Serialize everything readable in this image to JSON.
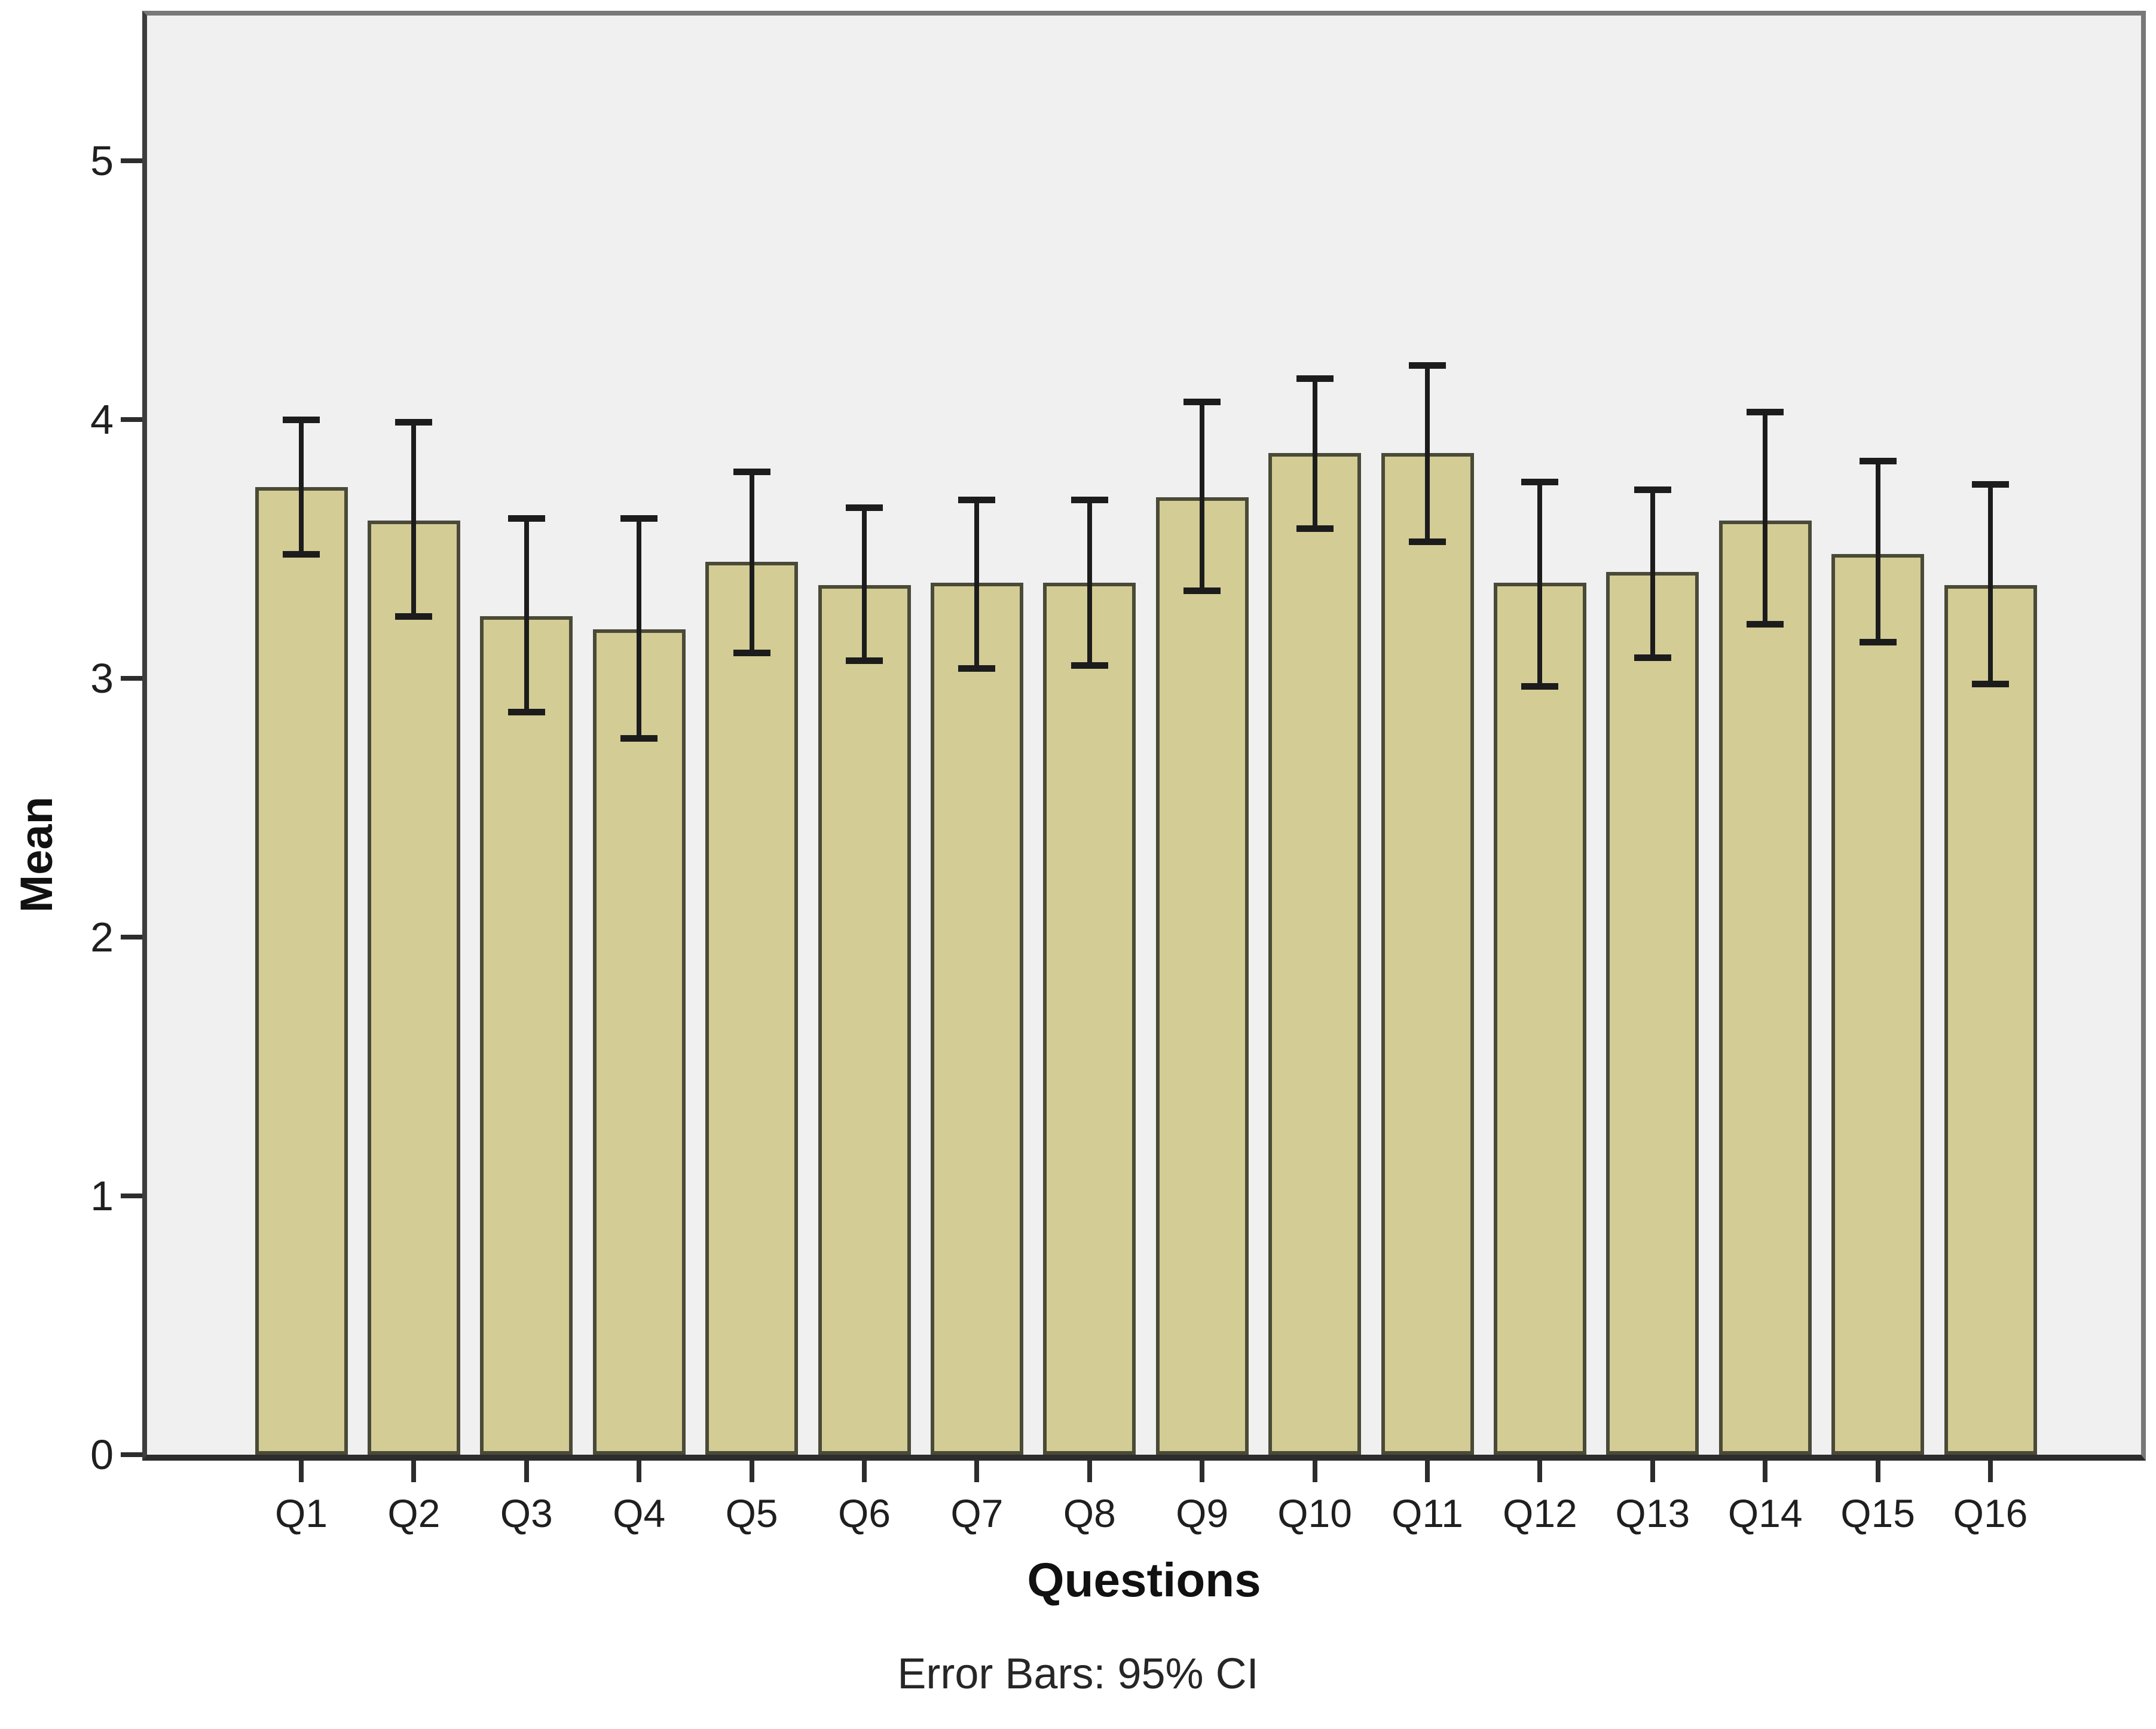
{
  "chart_data": {
    "type": "bar",
    "title": "",
    "xlabel": "Questions",
    "ylabel": "Mean",
    "categories": [
      "Q1",
      "Q2",
      "Q3",
      "Q4",
      "Q5",
      "Q6",
      "Q7",
      "Q8",
      "Q9",
      "Q10",
      "Q11",
      "Q12",
      "Q13",
      "Q14",
      "Q15",
      "Q16"
    ],
    "series": [
      {
        "name": "Mean",
        "values": [
          3.74,
          3.61,
          3.24,
          3.19,
          3.45,
          3.36,
          3.37,
          3.37,
          3.7,
          3.87,
          3.87,
          3.37,
          3.41,
          3.61,
          3.48,
          3.36
        ]
      }
    ],
    "error_bars": {
      "kind": "95% CI",
      "upper": [
        4.0,
        3.99,
        3.62,
        3.62,
        3.8,
        3.66,
        3.69,
        3.69,
        4.07,
        4.16,
        4.21,
        3.76,
        3.73,
        4.03,
        3.84,
        3.75
      ],
      "lower": [
        3.48,
        3.24,
        2.87,
        2.77,
        3.1,
        3.07,
        3.04,
        3.05,
        3.34,
        3.58,
        3.53,
        2.97,
        3.08,
        3.21,
        3.14,
        2.98
      ]
    },
    "ylim": [
      0,
      5
    ],
    "yticks": [
      "0",
      "1",
      "2",
      "3",
      "4",
      "5"
    ],
    "grid": false,
    "legend_position": "none",
    "colors": {
      "bar_fill": "#d3cc95",
      "bar_border": "#4a4a38",
      "error_bar": "#1c1c1c",
      "plot_background": "#f0f0f1",
      "page_background": "#ffffff",
      "axis_line": "#2d2d2d",
      "frame_line": "#787878",
      "text": "#1f1f1f"
    }
  },
  "axis": {
    "x_title": "Questions",
    "y_title": "Mean"
  },
  "footnote": "Error Bars: 95% CI"
}
